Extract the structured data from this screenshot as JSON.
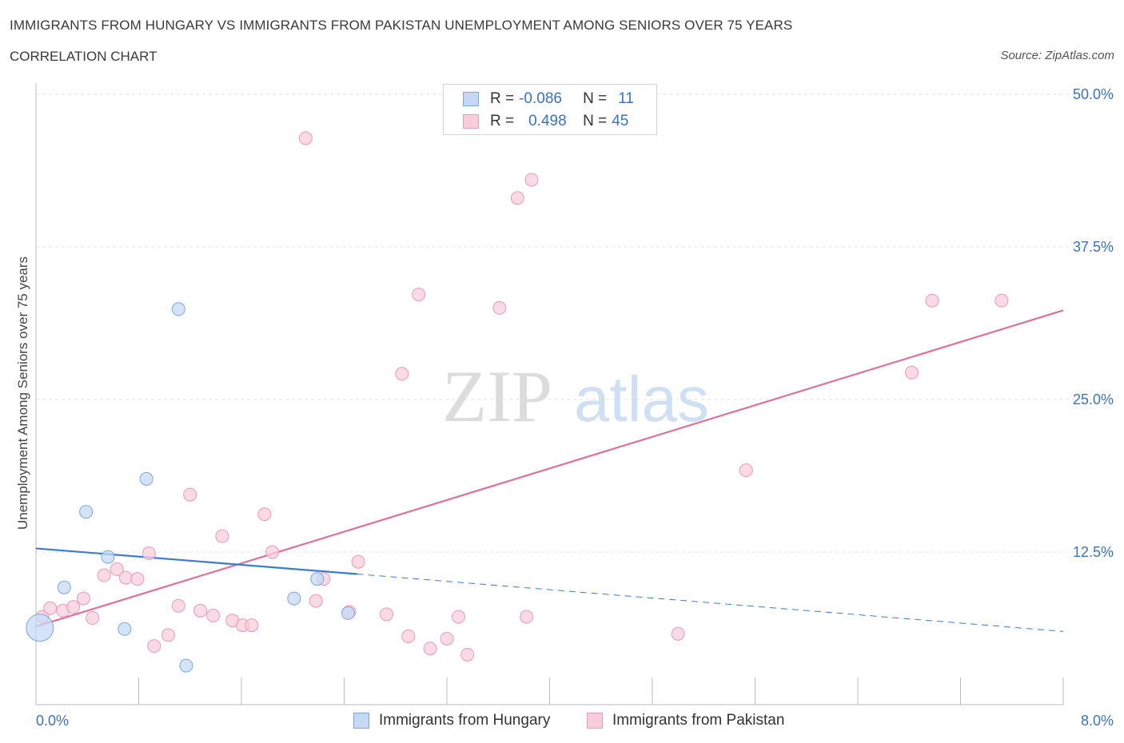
{
  "title": "IMMIGRANTS FROM HUNGARY VS IMMIGRANTS FROM PAKISTAN UNEMPLOYMENT AMONG SENIORS OVER 75 YEARS",
  "subtitle": "CORRELATION CHART",
  "source": "Source: ZipAtlas.com",
  "watermark": {
    "zip": "ZIP",
    "atlas": "atlas"
  },
  "legend": {
    "r_label": "R =",
    "n_label": "N =",
    "hungary": {
      "r": "-0.086",
      "n": "11"
    },
    "pakistan": {
      "r": "0.498",
      "n": "45"
    }
  },
  "colors": {
    "hungary_fill": "#c5d9f5",
    "hungary_stroke": "#7aa8e0",
    "hungary_line": "#3a7bd5",
    "pakistan_fill": "#f8cddb",
    "pakistan_stroke": "#e99ab4",
    "pakistan_line": "#e0709a",
    "axis_text": "#3b72c4"
  },
  "chart_data": {
    "type": "scatter",
    "title": "IMMIGRANTS FROM HUNGARY VS IMMIGRANTS FROM PAKISTAN UNEMPLOYMENT AMONG SENIORS OVER 75 YEARS",
    "xlabel": "",
    "ylabel": "Unemployment Among Seniors over 75 years",
    "xlim": [
      0,
      8
    ],
    "ylim": [
      0,
      50
    ],
    "x_tick_labels": [
      "0.0%",
      "8.0%"
    ],
    "y_ticks": [
      12.5,
      25.0,
      37.5,
      50.0
    ],
    "y_tick_labels": [
      "12.5%",
      "25.0%",
      "37.5%",
      "50.0%"
    ],
    "grid": true,
    "series": [
      {
        "name": "Immigrants from Hungary",
        "points": [
          {
            "x": 0.03,
            "y": 6.3,
            "big": true
          },
          {
            "x": 0.22,
            "y": 9.6
          },
          {
            "x": 0.39,
            "y": 15.8
          },
          {
            "x": 0.56,
            "y": 12.1
          },
          {
            "x": 0.69,
            "y": 6.2
          },
          {
            "x": 0.86,
            "y": 18.5
          },
          {
            "x": 1.11,
            "y": 32.4
          },
          {
            "x": 1.17,
            "y": 3.2
          },
          {
            "x": 2.01,
            "y": 8.7
          },
          {
            "x": 2.19,
            "y": 10.3
          },
          {
            "x": 2.43,
            "y": 7.5
          }
        ],
        "trend": {
          "x_start": 0.0,
          "y_start": 12.8,
          "x_solid_end": 2.5,
          "y_solid_end": 10.7,
          "x_end": 8.0,
          "y_end": 6.0
        }
      },
      {
        "name": "Immigrants from Pakistan",
        "points": [
          {
            "x": 0.05,
            "y": 7.2
          },
          {
            "x": 0.11,
            "y": 7.9
          },
          {
            "x": 0.21,
            "y": 7.7
          },
          {
            "x": 0.29,
            "y": 8.0
          },
          {
            "x": 0.37,
            "y": 8.7
          },
          {
            "x": 0.44,
            "y": 7.1
          },
          {
            "x": 0.53,
            "y": 10.6
          },
          {
            "x": 0.63,
            "y": 11.1
          },
          {
            "x": 0.7,
            "y": 10.4
          },
          {
            "x": 0.79,
            "y": 10.3
          },
          {
            "x": 0.88,
            "y": 12.4
          },
          {
            "x": 0.92,
            "y": 4.8
          },
          {
            "x": 1.03,
            "y": 5.7
          },
          {
            "x": 1.11,
            "y": 8.1
          },
          {
            "x": 1.2,
            "y": 17.2
          },
          {
            "x": 1.28,
            "y": 7.7
          },
          {
            "x": 1.38,
            "y": 7.3
          },
          {
            "x": 1.45,
            "y": 13.8
          },
          {
            "x": 1.53,
            "y": 6.9
          },
          {
            "x": 1.61,
            "y": 6.5
          },
          {
            "x": 1.68,
            "y": 6.5
          },
          {
            "x": 1.78,
            "y": 15.6
          },
          {
            "x": 1.84,
            "y": 12.5
          },
          {
            "x": 2.1,
            "y": 46.4
          },
          {
            "x": 2.18,
            "y": 8.5
          },
          {
            "x": 2.24,
            "y": 10.3
          },
          {
            "x": 2.44,
            "y": 7.6
          },
          {
            "x": 2.51,
            "y": 11.7
          },
          {
            "x": 2.73,
            "y": 7.4
          },
          {
            "x": 2.85,
            "y": 27.1
          },
          {
            "x": 2.9,
            "y": 5.6
          },
          {
            "x": 2.98,
            "y": 33.6
          },
          {
            "x": 3.07,
            "y": 4.6
          },
          {
            "x": 3.2,
            "y": 5.4
          },
          {
            "x": 3.29,
            "y": 7.2
          },
          {
            "x": 3.36,
            "y": 4.1
          },
          {
            "x": 3.61,
            "y": 32.5
          },
          {
            "x": 3.75,
            "y": 41.5
          },
          {
            "x": 3.82,
            "y": 7.2
          },
          {
            "x": 3.86,
            "y": 43.0
          },
          {
            "x": 5.0,
            "y": 5.8
          },
          {
            "x": 5.53,
            "y": 19.2
          },
          {
            "x": 6.82,
            "y": 27.2
          },
          {
            "x": 6.98,
            "y": 33.1
          },
          {
            "x": 7.52,
            "y": 33.1
          }
        ],
        "trend": {
          "x_start": 0.0,
          "y_start": 6.4,
          "x_end": 8.0,
          "y_end": 32.3
        }
      }
    ]
  },
  "bottom_legend": {
    "hungary": "Immigrants from Hungary",
    "pakistan": "Immigrants from Pakistan"
  }
}
